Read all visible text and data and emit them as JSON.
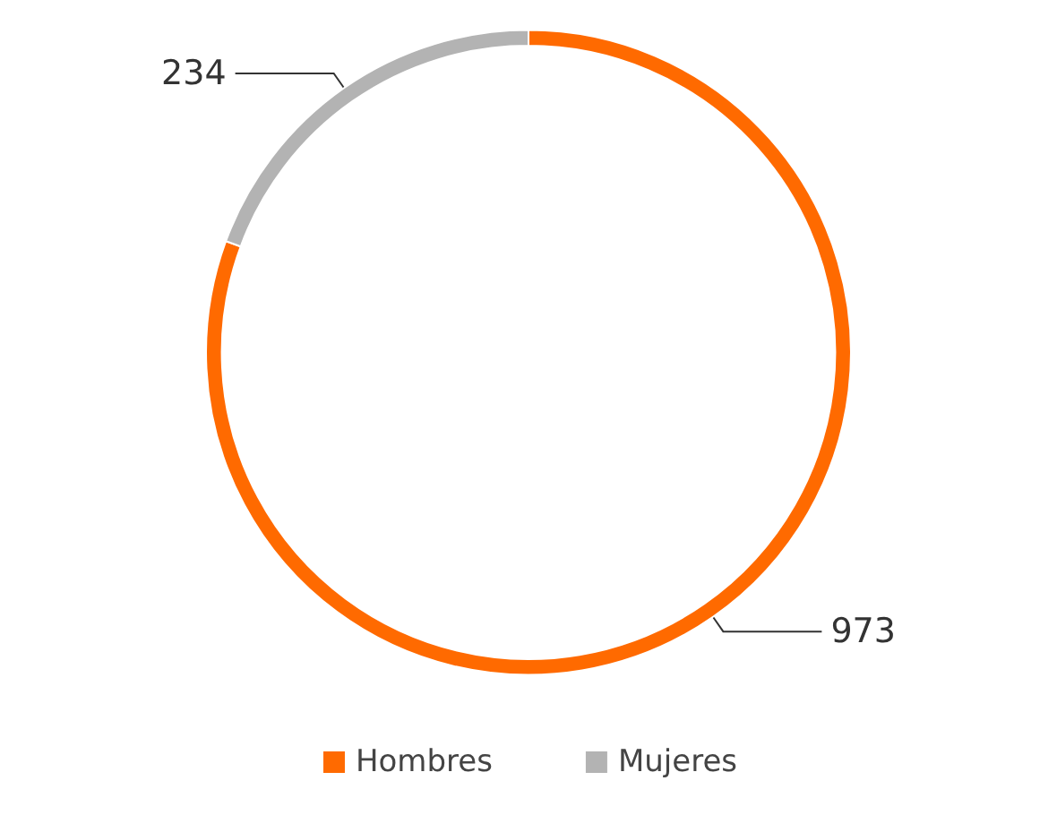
{
  "chart_data": {
    "type": "donut",
    "categories": [
      "Hombres",
      "Mujeres"
    ],
    "values": [
      973,
      234
    ],
    "colors": [
      "#ff6a00",
      "#b3b3b3"
    ],
    "data_labels": true,
    "legend": "bottom"
  }
}
